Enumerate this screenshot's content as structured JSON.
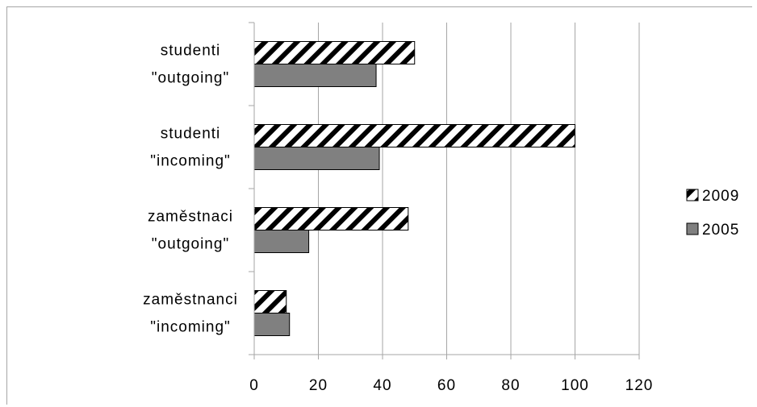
{
  "chart_data": {
    "type": "bar",
    "orientation": "horizontal",
    "categories": [
      [
        "studenti",
        "\"outgoing\""
      ],
      [
        "studenti",
        "\"incoming\""
      ],
      [
        "zaměstnaci",
        "\"outgoing\""
      ],
      [
        "zaměstnanci",
        "\"incoming\""
      ]
    ],
    "series": [
      {
        "name": "2009",
        "values": [
          50,
          100,
          48,
          10
        ],
        "fill": "hatch",
        "color": "#000000"
      },
      {
        "name": "2005",
        "values": [
          38,
          39,
          17,
          11
        ],
        "fill": "solid",
        "color": "#808080"
      }
    ],
    "xlim": [
      0,
      120
    ],
    "xticks": [
      "0",
      "20",
      "40",
      "60",
      "80",
      "100",
      "120"
    ],
    "grid": true,
    "legend_position": "right"
  }
}
